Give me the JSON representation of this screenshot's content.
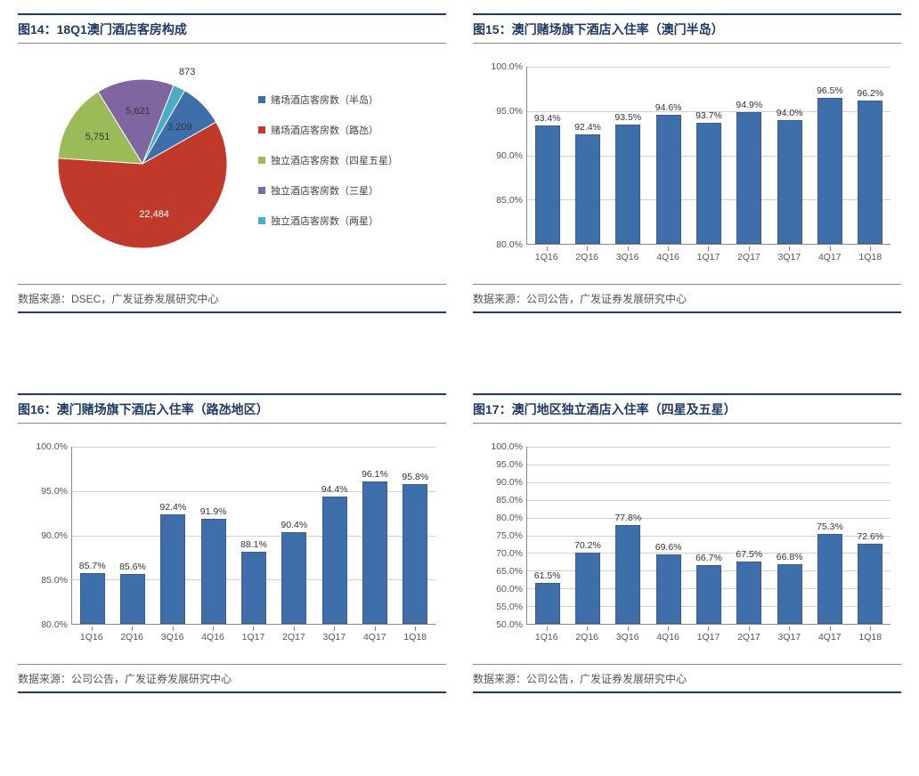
{
  "colors": {
    "title": "#1f3a63",
    "bar_fill": "#3f6faa",
    "bar_border": "#3a5d8a",
    "grid": "#d0d0d0",
    "axis": "#888888",
    "text": "#333333"
  },
  "panels": {
    "pie": {
      "title": "图14：18Q1澳门酒店客房构成",
      "source": "数据来源：DSEC，广发证券发展研究中心",
      "type": "pie",
      "slices": [
        {
          "label": "赌场酒店客房数（半岛）",
          "value": 3209,
          "color": "#3f6faa",
          "display": "3,209"
        },
        {
          "label": "赌场酒店客房数（路氹）",
          "value": 22484,
          "color": "#c0392b",
          "display": "22,484"
        },
        {
          "label": "独立酒店客房数（四星五星）",
          "value": 5751,
          "color": "#9bbb59",
          "display": "5,751"
        },
        {
          "label": "独立酒店客房数（三星）",
          "value": 5621,
          "color": "#8066a0",
          "display": "5,621"
        },
        {
          "label": "独立酒店客房数（两星）",
          "value": 873,
          "color": "#4bacc6",
          "display": "873"
        }
      ],
      "legend_fontsize": 11,
      "label_fontsize": 11,
      "radius": 95,
      "start_angle_deg": -60
    },
    "bar15": {
      "title": "图15：澳门赌场旗下酒店入住率（澳门半岛）",
      "source": "数据来源：公司公告，广发证券发展研究中心",
      "type": "bar",
      "categories": [
        "1Q16",
        "2Q16",
        "3Q16",
        "4Q16",
        "1Q17",
        "2Q17",
        "3Q17",
        "4Q17",
        "1Q18"
      ],
      "values": [
        93.4,
        92.4,
        93.5,
        94.6,
        93.7,
        94.9,
        94.0,
        96.5,
        96.2
      ],
      "value_labels": [
        "93.4%",
        "92.4%",
        "93.5%",
        "94.6%",
        "93.7%",
        "94.9%",
        "94.0%",
        "96.5%",
        "96.2%"
      ],
      "ylim": [
        80,
        100
      ],
      "ytick_step": 5,
      "y_tick_labels": [
        "80.0%",
        "85.0%",
        "90.0%",
        "95.0%",
        "100.0%"
      ],
      "bar_color": "#3f6faa",
      "label_fontsize": 10.5
    },
    "bar16": {
      "title": "图16：澳门赌场旗下酒店入住率（路氹地区）",
      "source": "数据来源：公司公告，广发证券发展研究中心",
      "type": "bar",
      "categories": [
        "1Q16",
        "2Q16",
        "3Q16",
        "4Q16",
        "1Q17",
        "2Q17",
        "3Q17",
        "4Q17",
        "1Q18"
      ],
      "values": [
        85.7,
        85.6,
        92.4,
        91.9,
        88.1,
        90.4,
        94.4,
        96.1,
        95.8
      ],
      "value_labels": [
        "85.7%",
        "85.6%",
        "92.4%",
        "91.9%",
        "88.1%",
        "90.4%",
        "94.4%",
        "96.1%",
        "95.8%"
      ],
      "ylim": [
        80,
        100
      ],
      "ytick_step": 5,
      "y_tick_labels": [
        "80.0%",
        "85.0%",
        "90.0%",
        "95.0%",
        "100.0%"
      ],
      "bar_color": "#3f6faa",
      "label_fontsize": 10.5
    },
    "bar17": {
      "title": "图17：澳门地区独立酒店入住率（四星及五星）",
      "source": "数据来源：公司公告，广发证券发展研究中心",
      "type": "bar",
      "categories": [
        "1Q16",
        "2Q16",
        "3Q16",
        "4Q16",
        "1Q17",
        "2Q17",
        "3Q17",
        "4Q17",
        "1Q18"
      ],
      "values": [
        61.5,
        70.2,
        77.8,
        69.6,
        66.7,
        67.5,
        66.8,
        75.3,
        72.6
      ],
      "value_labels": [
        "61.5%",
        "70.2%",
        "77.8%",
        "69.6%",
        "66.7%",
        "67.5%",
        "66.8%",
        "75.3%",
        "72.6%"
      ],
      "ylim": [
        50,
        100
      ],
      "ytick_step": 5,
      "y_tick_labels": [
        "50.0%",
        "55.0%",
        "60.0%",
        "65.0%",
        "70.0%",
        "75.0%",
        "80.0%",
        "85.0%",
        "90.0%",
        "95.0%",
        "100.0%"
      ],
      "bar_color": "#3f6faa",
      "label_fontsize": 10.5
    }
  }
}
